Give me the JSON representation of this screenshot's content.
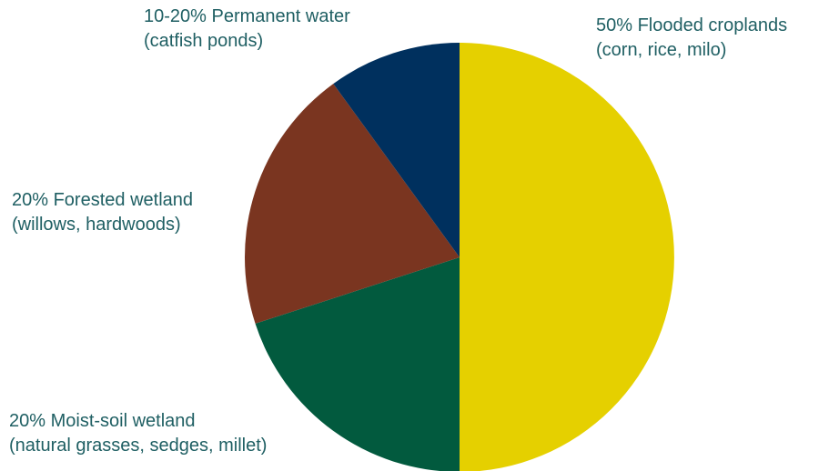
{
  "chart_data": {
    "type": "pie",
    "title": "",
    "slices": [
      {
        "label": "50% Flooded croplands",
        "detail": "(corn, rice, milo)",
        "value": 50,
        "color": "#e5d000"
      },
      {
        "label": "20% Moist-soil wetland",
        "detail": "(natural grasses, sedges, millet)",
        "value": 20,
        "color": "#025a3e"
      },
      {
        "label": "20% Forested wetland",
        "detail": "(willows, hardwoods)",
        "value": 20,
        "color": "#7a3520"
      },
      {
        "label": "10-20% Permanent water",
        "detail": "(catfish ponds)",
        "value": 10,
        "color": "#00305e"
      }
    ],
    "legend": "none"
  }
}
